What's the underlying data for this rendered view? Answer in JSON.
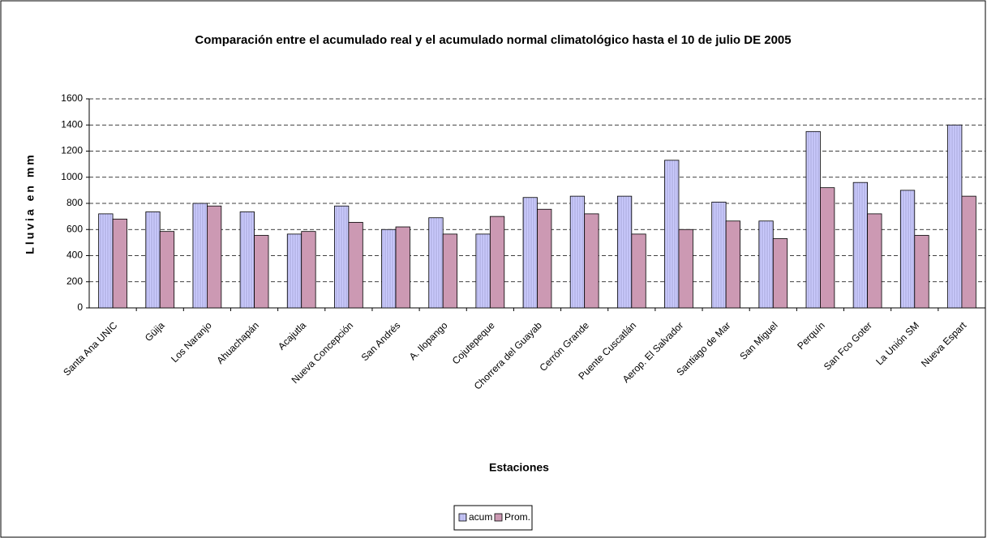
{
  "chart_data": {
    "type": "bar",
    "title": "Comparación entre el acumulado real y el acumulado normal climatológico hasta el 10 de julio DE 2005",
    "x_label": "Estaciones",
    "y_label": "Lluvia en mm",
    "categories": [
      "Santa Ana UNIC",
      "Güija",
      "Los Naranjo",
      "Ahuachapán",
      "Acajutla",
      "Nueva Concepción",
      "San Andrés",
      "A. Ilopango",
      "Cojutepeque",
      "Chorrera del Guayab",
      "Cerrón Grande",
      "Puente Cuscatlán",
      "Aerop. El Salvador",
      "Santiago de Mar",
      "San Miguel",
      "Perquín",
      "San Fco Goter",
      "La Unión SM",
      "Nueva Espart"
    ],
    "series": [
      {
        "name": "acum",
        "color": "#ccccff",
        "values": [
          720,
          735,
          800,
          735,
          565,
          780,
          600,
          690,
          565,
          845,
          855,
          855,
          1130,
          810,
          665,
          1350,
          960,
          900,
          1400
        ]
      },
      {
        "name": "Prom.",
        "color": "#cc99b3",
        "values": [
          680,
          585,
          780,
          555,
          585,
          655,
          620,
          565,
          700,
          755,
          720,
          565,
          600,
          665,
          530,
          920,
          720,
          555,
          855
        ]
      }
    ],
    "ylim": [
      0,
      1600
    ],
    "yticks": [
      0,
      200,
      400,
      600,
      800,
      1000,
      1200,
      1400,
      1600
    ],
    "grid": true,
    "legend": "bottom"
  }
}
